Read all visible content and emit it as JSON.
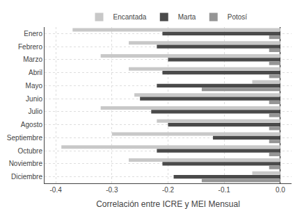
{
  "chart_data": {
    "type": "bar",
    "orientation": "horizontal",
    "categories": [
      "Enero",
      "Febrero",
      "Marzo",
      "Abril",
      "Mayo",
      "Junio",
      "Julio",
      "Agosto",
      "Septiembre",
      "Octubre",
      "Noviembre",
      "Diciembre"
    ],
    "series": [
      {
        "name": "Encantada",
        "color": "#c8c8c8",
        "values": [
          -0.37,
          -0.27,
          -0.32,
          -0.27,
          -0.05,
          -0.26,
          -0.32,
          -0.22,
          -0.3,
          -0.39,
          -0.27,
          -0.05
        ]
      },
      {
        "name": "Marta",
        "color": "#4a4a4a",
        "values": [
          -0.21,
          -0.22,
          -0.2,
          -0.21,
          -0.22,
          -0.25,
          -0.23,
          -0.2,
          -0.12,
          -0.22,
          -0.21,
          -0.19
        ]
      },
      {
        "name": "Potosí",
        "color": "#959595",
        "values": [
          -0.02,
          -0.02,
          -0.02,
          -0.02,
          -0.14,
          -0.02,
          -0.02,
          -0.02,
          -0.02,
          -0.02,
          -0.02,
          -0.14
        ]
      }
    ],
    "xlabel": "Correlación entre ICRE y MEI Mensual",
    "xlim": [
      -0.42,
      0.02
    ],
    "xticks": [
      -0.4,
      -0.3,
      -0.2,
      -0.1,
      {
        "value": 0.0,
        "label": "0.0"
      }
    ],
    "grid": true,
    "legend": "top"
  }
}
